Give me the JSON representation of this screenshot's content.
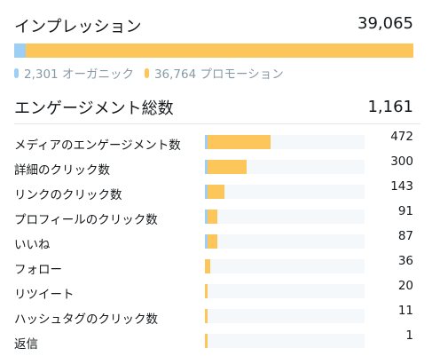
{
  "impressions": {
    "title": "インプレッション",
    "total": "39,065",
    "organic_value": 2301,
    "promoted_value": 36764,
    "organic_label": "2,301 オーガニック",
    "promoted_label": "36,764 プロモーション",
    "colors": {
      "organic": "#9ccff3",
      "promoted": "#fcc65b"
    }
  },
  "engagements": {
    "title": "エンゲージメント総数",
    "total": "1,161",
    "max_value": 472,
    "rows": [
      {
        "label": "メディアのエンゲージメント数",
        "value": "472",
        "organic": 3,
        "promoted": 469
      },
      {
        "label": "詳細のクリック数",
        "value": "300",
        "organic": 3,
        "promoted": 297
      },
      {
        "label": "リンクのクリック数",
        "value": "143",
        "organic": 4,
        "promoted": 139
      },
      {
        "label": "プロフィールのクリック数",
        "value": "91",
        "organic": 3,
        "promoted": 88
      },
      {
        "label": "いいね",
        "value": "87",
        "organic": 3,
        "promoted": 84
      },
      {
        "label": "フォロー",
        "value": "36",
        "organic": 0,
        "promoted": 36
      },
      {
        "label": "リツイート",
        "value": "20",
        "organic": 0,
        "promoted": 20
      },
      {
        "label": "ハッシュタグのクリック数",
        "value": "11",
        "organic": 0,
        "promoted": 11
      },
      {
        "label": "返信",
        "value": "1",
        "organic": 0,
        "promoted": 1
      }
    ]
  }
}
